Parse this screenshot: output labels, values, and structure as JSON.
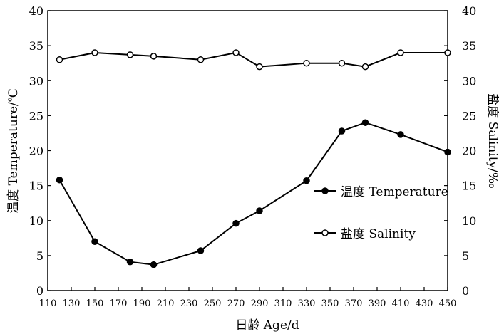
{
  "chart_data": {
    "type": "line",
    "title": "",
    "xlabel": "日龄 Age/d",
    "ylabel_left": "温度 Temperature/℃",
    "ylabel_right": "盐度 Salinity/‰",
    "xlim": [
      110,
      450
    ],
    "ylim_left": [
      0,
      40
    ],
    "ylim_right": [
      0,
      40
    ],
    "x_ticks": [
      "110",
      "130",
      "150",
      "170",
      "190",
      "210",
      "230",
      "250",
      "270",
      "290",
      "310",
      "330",
      "350",
      "370",
      "390",
      "410",
      "430",
      "450"
    ],
    "y_ticks_left": [
      "0",
      "5",
      "10",
      "15",
      "20",
      "25",
      "30",
      "35",
      "40"
    ],
    "y_ticks_right": [
      "0",
      "5",
      "10",
      "15",
      "20",
      "25",
      "30",
      "35",
      "40"
    ],
    "legend_position": "right-middle",
    "grid": false,
    "series": [
      {
        "name": "温度 Temperature",
        "axis": "left",
        "marker": "filled-circle",
        "color": "#000000",
        "x": [
          120,
          150,
          180,
          200,
          240,
          270,
          290,
          330,
          360,
          380,
          410,
          450
        ],
        "y": [
          15.8,
          7.0,
          4.1,
          3.7,
          5.7,
          9.6,
          11.4,
          15.7,
          22.8,
          24.0,
          22.3,
          19.8
        ]
      },
      {
        "name": "盐度 Salinity",
        "axis": "right",
        "marker": "open-circle",
        "color": "#000000",
        "x": [
          120,
          150,
          180,
          200,
          240,
          270,
          290,
          330,
          360,
          380,
          410,
          450
        ],
        "y": [
          33.0,
          34.0,
          33.7,
          33.5,
          33.0,
          34.0,
          32.0,
          32.5,
          32.5,
          32.0,
          34.0,
          34.0
        ]
      }
    ]
  }
}
